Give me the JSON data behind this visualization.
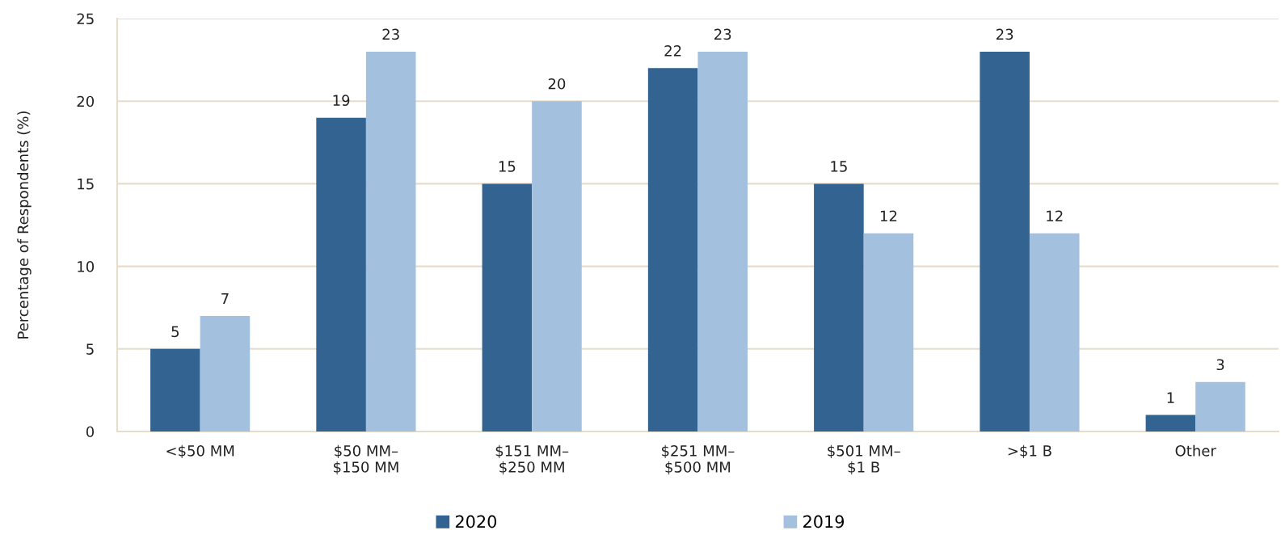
{
  "chart_data": {
    "type": "bar",
    "ylabel": "Percentage of Respondents (%)",
    "categories": [
      "<$50 MM",
      "$50 MM–\n$150 MM",
      "$151 MM–\n$250 MM",
      "$251 MM–\n$500 MM",
      "$501 MM–\n$1 B",
      ">$1 B",
      "Other"
    ],
    "series": [
      {
        "name": "2020",
        "color": "#336391",
        "values": [
          5,
          19,
          15,
          22,
          15,
          23,
          1
        ]
      },
      {
        "name": "2019",
        "color": "#a3c0df",
        "values": [
          7,
          23,
          20,
          23,
          12,
          12,
          3
        ]
      }
    ],
    "ylim": [
      0,
      25
    ],
    "yticks": [
      0,
      5,
      10,
      15,
      20,
      25
    ],
    "grid": "y",
    "legend": "bottom",
    "data_labels": true
  }
}
